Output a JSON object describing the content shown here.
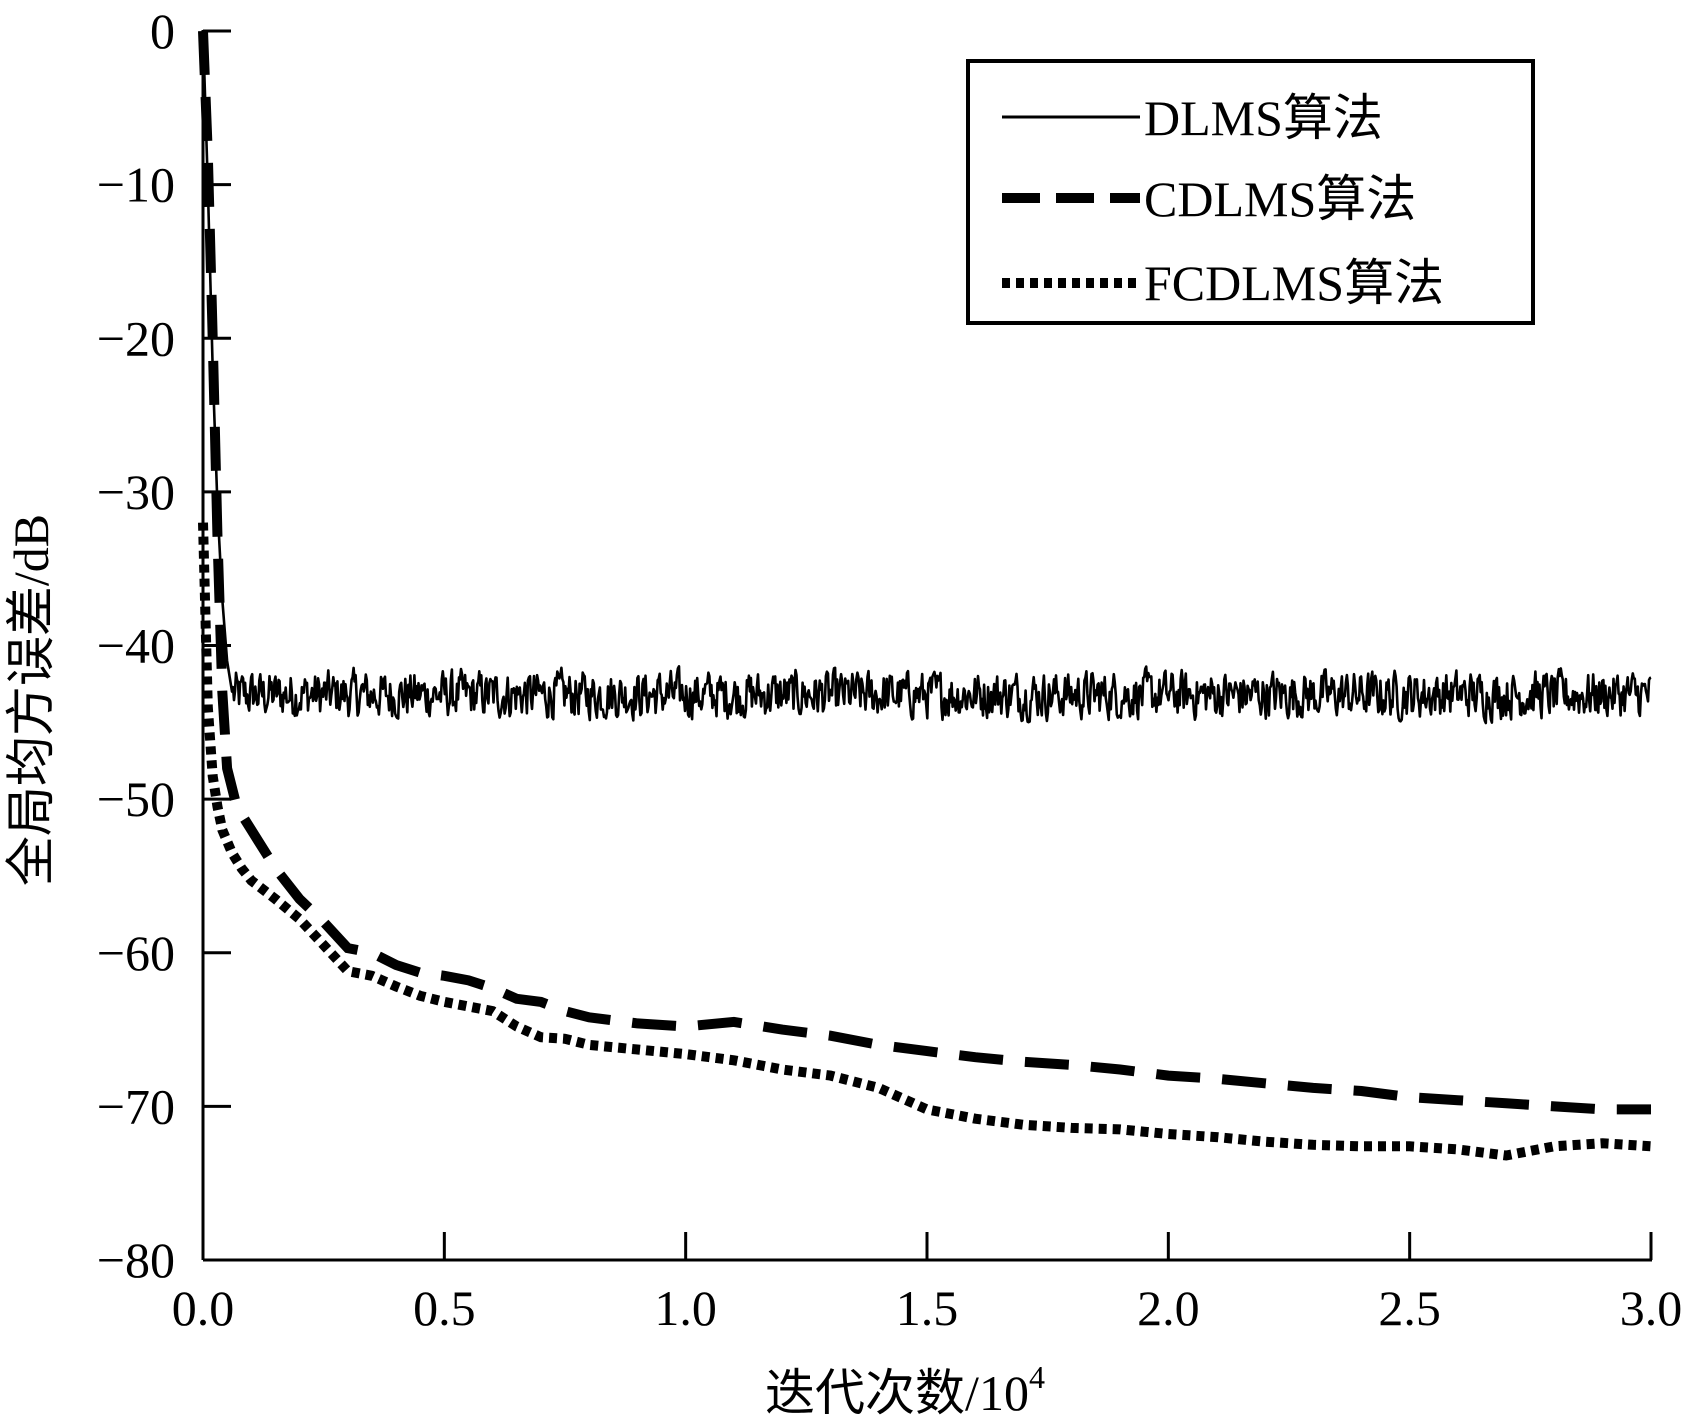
{
  "chart_data": {
    "type": "line",
    "title": "",
    "xlabel": "迭代次数/10",
    "xlabel_sup": "4",
    "ylabel": "全局均方误差/dB",
    "xlim": [
      0,
      3.0
    ],
    "ylim": [
      -80,
      0
    ],
    "x_ticks": [
      "0.0",
      "0.5",
      "1.0",
      "1.5",
      "2.0",
      "2.5",
      "3.0"
    ],
    "y_ticks": [
      "0",
      "−10",
      "−20",
      "−30",
      "−40",
      "−50",
      "−60",
      "−70",
      "−80"
    ],
    "legend_position": "top-right",
    "series": [
      {
        "name": "DLMS算法",
        "style": "solid",
        "steady_state_db": -43.2,
        "noise_amplitude_db": 1.3,
        "x": [
          0.0,
          0.01,
          0.02,
          0.03,
          0.04,
          0.05,
          0.06
        ],
        "y": [
          0.0,
          -10.0,
          -22.0,
          -31.0,
          -37.0,
          -41.0,
          -43.0
        ]
      },
      {
        "name": "CDLMS算法",
        "style": "dashed",
        "x": [
          0.0,
          0.01,
          0.02,
          0.03,
          0.04,
          0.05,
          0.07,
          0.1,
          0.15,
          0.2,
          0.25,
          0.3,
          0.35,
          0.4,
          0.45,
          0.5,
          0.55,
          0.6,
          0.65,
          0.7,
          0.75,
          0.8,
          0.9,
          1.0,
          1.1,
          1.2,
          1.3,
          1.4,
          1.5,
          1.6,
          1.7,
          1.8,
          1.9,
          2.0,
          2.1,
          2.2,
          2.3,
          2.4,
          2.5,
          2.6,
          2.7,
          2.8,
          2.9,
          3.0
        ],
        "y": [
          0.0,
          -8.0,
          -20.0,
          -33.0,
          -43.0,
          -48.0,
          -50.5,
          -52.0,
          -54.5,
          -56.5,
          -58.0,
          -59.7,
          -60.0,
          -60.8,
          -61.3,
          -61.5,
          -61.8,
          -62.3,
          -63.0,
          -63.2,
          -63.8,
          -64.2,
          -64.6,
          -64.8,
          -64.5,
          -65.0,
          -65.4,
          -66.0,
          -66.4,
          -66.8,
          -67.1,
          -67.3,
          -67.6,
          -68.0,
          -68.2,
          -68.5,
          -68.8,
          -69.0,
          -69.4,
          -69.6,
          -69.8,
          -70.0,
          -70.2,
          -70.2
        ]
      },
      {
        "name": "FCDLMS算法",
        "style": "dotted",
        "x": [
          0.0,
          0.01,
          0.02,
          0.03,
          0.04,
          0.06,
          0.08,
          0.1,
          0.15,
          0.2,
          0.25,
          0.3,
          0.35,
          0.4,
          0.45,
          0.5,
          0.55,
          0.6,
          0.65,
          0.7,
          0.75,
          0.8,
          0.9,
          1.0,
          1.1,
          1.2,
          1.3,
          1.4,
          1.5,
          1.6,
          1.7,
          1.8,
          1.9,
          2.0,
          2.1,
          2.2,
          2.3,
          2.4,
          2.5,
          2.6,
          2.7,
          2.8,
          2.9,
          3.0
        ],
        "y": [
          -32.0,
          -44.0,
          -48.5,
          -50.5,
          -52.0,
          -53.5,
          -54.5,
          -55.3,
          -56.5,
          -57.8,
          -59.5,
          -61.2,
          -61.5,
          -62.2,
          -62.8,
          -63.2,
          -63.5,
          -63.8,
          -64.8,
          -65.5,
          -65.6,
          -66.0,
          -66.3,
          -66.6,
          -67.0,
          -67.6,
          -68.0,
          -68.8,
          -70.2,
          -70.8,
          -71.2,
          -71.4,
          -71.5,
          -71.8,
          -72.0,
          -72.3,
          -72.5,
          -72.6,
          -72.6,
          -72.8,
          -73.2,
          -72.6,
          -72.4,
          -72.6
        ]
      }
    ]
  }
}
